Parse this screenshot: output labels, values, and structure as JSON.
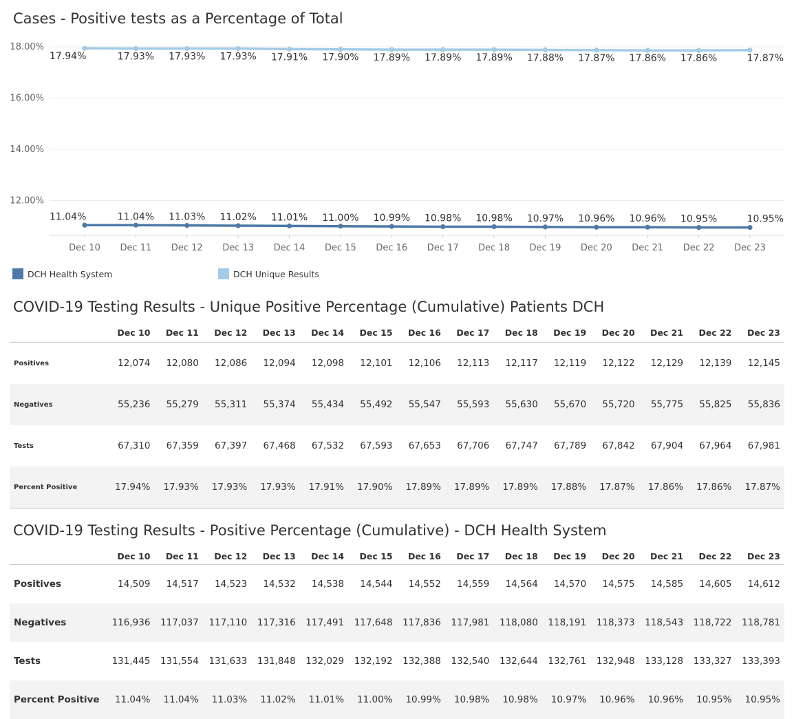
{
  "chart": {
    "title": "Cases - Positive tests as a Percentage of Total"
  },
  "chart_data": {
    "type": "line",
    "title": "Cases - Positive tests as a Percentage of Total",
    "categories": [
      "Dec 10",
      "Dec 11",
      "Dec 12",
      "Dec 13",
      "Dec 14",
      "Dec 15",
      "Dec 16",
      "Dec 17",
      "Dec 18",
      "Dec 19",
      "Dec 20",
      "Dec 21",
      "Dec 22",
      "Dec 23"
    ],
    "y_ticks": [
      "18.00%",
      "16.00%",
      "14.00%",
      "12.00%"
    ],
    "y_tick_values": [
      18,
      16,
      14,
      12
    ],
    "ylim": [
      10.6,
      18.1
    ],
    "grid": true,
    "legend_position": "bottom-left",
    "series": [
      {
        "name": "DCH Unique Results",
        "color": "#a3cbe8",
        "values": [
          17.94,
          17.93,
          17.93,
          17.93,
          17.91,
          17.9,
          17.89,
          17.89,
          17.89,
          17.88,
          17.87,
          17.86,
          17.86,
          17.87
        ],
        "labels": [
          "17.94%",
          "17.93%",
          "17.93%",
          "17.93%",
          "17.91%",
          "17.90%",
          "17.89%",
          "17.89%",
          "17.89%",
          "17.88%",
          "17.87%",
          "17.86%",
          "17.86%",
          "17.87%"
        ]
      },
      {
        "name": "DCH Health System",
        "color": "#4e79a7",
        "values": [
          11.04,
          11.04,
          11.03,
          11.02,
          11.01,
          11.0,
          10.99,
          10.98,
          10.98,
          10.97,
          10.96,
          10.96,
          10.95,
          10.95
        ],
        "labels": [
          "11.04%",
          "11.04%",
          "11.03%",
          "11.02%",
          "11.01%",
          "11.00%",
          "10.99%",
          "10.98%",
          "10.98%",
          "10.97%",
          "10.96%",
          "10.96%",
          "10.95%",
          "10.95%"
        ]
      }
    ]
  },
  "legend": [
    {
      "label": "DCH Health System",
      "color": "#4e79a7"
    },
    {
      "label": "DCH Unique Results",
      "color": "#a3cbe8"
    }
  ],
  "table_unique": {
    "title": "COVID-19 Testing Results - Unique Positive Percentage (Cumulative) Patients DCH",
    "columns": [
      "Dec 10",
      "Dec 11",
      "Dec 12",
      "Dec 13",
      "Dec 14",
      "Dec 15",
      "Dec 16",
      "Dec 17",
      "Dec 18",
      "Dec 19",
      "Dec 20",
      "Dec 21",
      "Dec 22",
      "Dec 23"
    ],
    "rows": [
      {
        "label": "Positives",
        "values": [
          "12,074",
          "12,080",
          "12,086",
          "12,094",
          "12,098",
          "12,101",
          "12,106",
          "12,113",
          "12,117",
          "12,119",
          "12,122",
          "12,129",
          "12,139",
          "12,145"
        ]
      },
      {
        "label": "Negatives",
        "values": [
          "55,236",
          "55,279",
          "55,311",
          "55,374",
          "55,434",
          "55,492",
          "55,547",
          "55,593",
          "55,630",
          "55,670",
          "55,720",
          "55,775",
          "55,825",
          "55,836"
        ]
      },
      {
        "label": "Tests",
        "values": [
          "67,310",
          "67,359",
          "67,397",
          "67,468",
          "67,532",
          "67,593",
          "67,653",
          "67,706",
          "67,747",
          "67,789",
          "67,842",
          "67,904",
          "67,964",
          "67,981"
        ]
      },
      {
        "label": "Percent Positive",
        "values": [
          "17.94%",
          "17.93%",
          "17.93%",
          "17.93%",
          "17.91%",
          "17.90%",
          "17.89%",
          "17.89%",
          "17.89%",
          "17.88%",
          "17.87%",
          "17.86%",
          "17.86%",
          "17.87%"
        ]
      }
    ]
  },
  "table_system": {
    "title": "COVID-19 Testing Results - Positive Percentage (Cumulative) - DCH Health System",
    "columns": [
      "Dec 10",
      "Dec 11",
      "Dec 12",
      "Dec 13",
      "Dec 14",
      "Dec 15",
      "Dec 16",
      "Dec 17",
      "Dec 18",
      "Dec 19",
      "Dec 20",
      "Dec 21",
      "Dec 22",
      "Dec 23"
    ],
    "rows": [
      {
        "label": "Positives",
        "values": [
          "14,509",
          "14,517",
          "14,523",
          "14,532",
          "14,538",
          "14,544",
          "14,552",
          "14,559",
          "14,564",
          "14,570",
          "14,575",
          "14,585",
          "14,605",
          "14,612"
        ]
      },
      {
        "label": "Negatives",
        "values": [
          "116,936",
          "117,037",
          "117,110",
          "117,316",
          "117,491",
          "117,648",
          "117,836",
          "117,981",
          "118,080",
          "118,191",
          "118,373",
          "118,543",
          "118,722",
          "118,781"
        ]
      },
      {
        "label": "Tests",
        "values": [
          "131,445",
          "131,554",
          "131,633",
          "131,848",
          "132,029",
          "132,192",
          "132,388",
          "132,540",
          "132,644",
          "132,761",
          "132,948",
          "133,128",
          "133,327",
          "133,393"
        ]
      },
      {
        "label": "Percent Positive",
        "values": [
          "11.04%",
          "11.04%",
          "11.03%",
          "11.02%",
          "11.01%",
          "11.00%",
          "10.99%",
          "10.98%",
          "10.98%",
          "10.97%",
          "10.96%",
          "10.96%",
          "10.95%",
          "10.95%"
        ]
      }
    ]
  }
}
